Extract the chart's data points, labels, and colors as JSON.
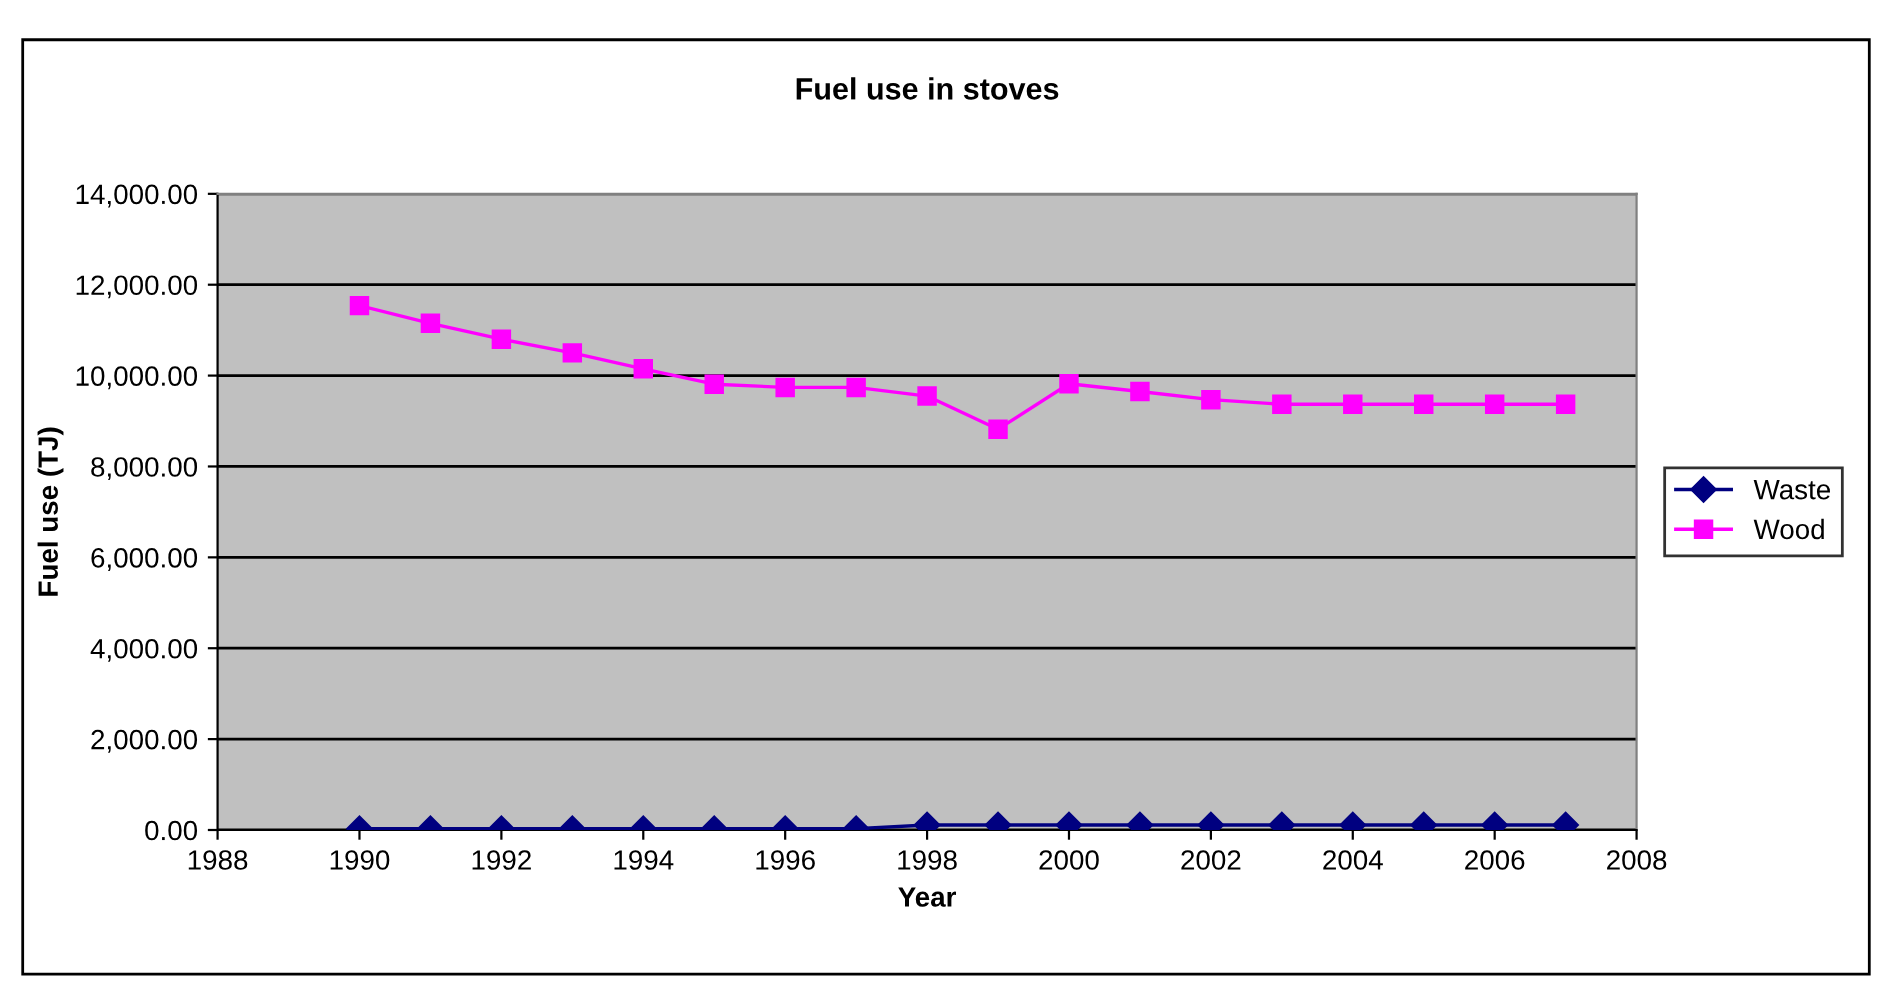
{
  "chart_data": {
    "type": "line",
    "title": "Fuel use in stoves",
    "xlabel": "Year",
    "ylabel": "Fuel use (TJ)",
    "x": [
      1990,
      1991,
      1992,
      1993,
      1994,
      1995,
      1996,
      1997,
      1998,
      1999,
      2000,
      2001,
      2002,
      2003,
      2004,
      2005,
      2006,
      2007
    ],
    "series": [
      {
        "name": "Waste",
        "color": "#000080",
        "marker": "diamond",
        "values": [
          30,
          30,
          30,
          30,
          30,
          30,
          30,
          30,
          110,
          110,
          110,
          110,
          110,
          110,
          110,
          110,
          110,
          110
        ]
      },
      {
        "name": "Wood",
        "color": "#ff00ff",
        "marker": "square",
        "values": [
          11540,
          11150,
          10800,
          10500,
          10150,
          9810,
          9740,
          9740,
          9550,
          8820,
          9820,
          9650,
          9470,
          9370,
          9370,
          9370,
          9370,
          9370
        ]
      }
    ],
    "xlim": [
      1988,
      2008
    ],
    "xticks": [
      1988,
      1990,
      1992,
      1994,
      1996,
      1998,
      2000,
      2002,
      2004,
      2006,
      2008
    ],
    "ylim": [
      0,
      14000
    ],
    "yticks": [
      {
        "value": 0,
        "label": "0.00"
      },
      {
        "value": 2000,
        "label": "2,000.00"
      },
      {
        "value": 4000,
        "label": "4,000.00"
      },
      {
        "value": 6000,
        "label": "6,000.00"
      },
      {
        "value": 8000,
        "label": "8,000.00"
      },
      {
        "value": 10000,
        "label": "10,000.00"
      },
      {
        "value": 12000,
        "label": "12,000.00"
      },
      {
        "value": 14000,
        "label": "14,000.00"
      }
    ],
    "grid": "y",
    "legend": "right"
  }
}
